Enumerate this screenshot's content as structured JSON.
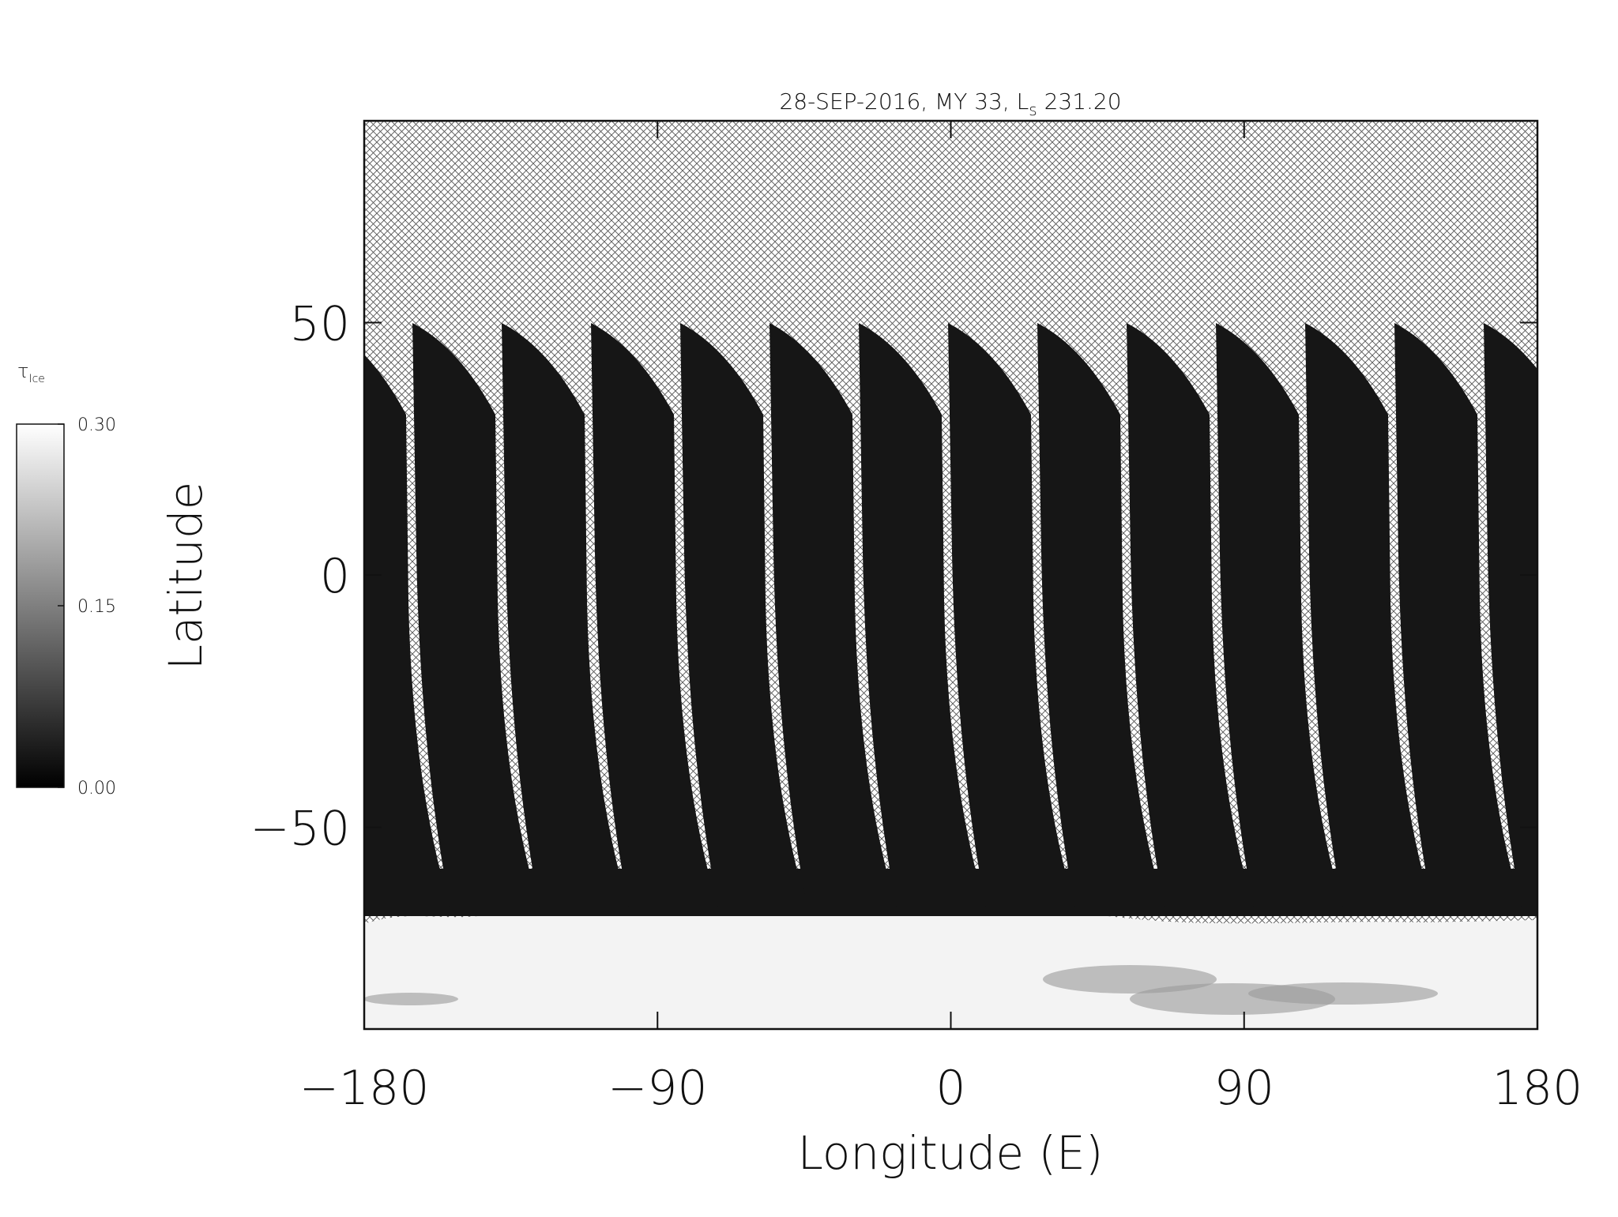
{
  "chart_data": {
    "type": "heatmap",
    "title": [
      "28-SEP-2016, MY 33,  L",
      "s",
      " 231.20"
    ],
    "xlabel": "Longitude (E)",
    "ylabel": "Latitude",
    "xlim": [
      -180,
      180
    ],
    "ylim": [
      -90,
      90
    ],
    "xticks": [
      {
        "value": -180,
        "label": "−180"
      },
      {
        "value": -90,
        "label": "−90"
      },
      0,
      90,
      180
    ],
    "yticks": [
      {
        "value": -50,
        "label": "−50"
      },
      0,
      50
    ],
    "colorbar": {
      "label": [
        "τ",
        "Ice"
      ],
      "lim": [
        0,
        0.3
      ],
      "ticks": [
        {
          "value": 0,
          "label": "0.00"
        },
        {
          "value": 0.15,
          "label": "0.15"
        },
        {
          "value": 0.3,
          "label": "0.30"
        }
      ],
      "colors": [
        "#000000",
        "#ffffff"
      ]
    }
  }
}
